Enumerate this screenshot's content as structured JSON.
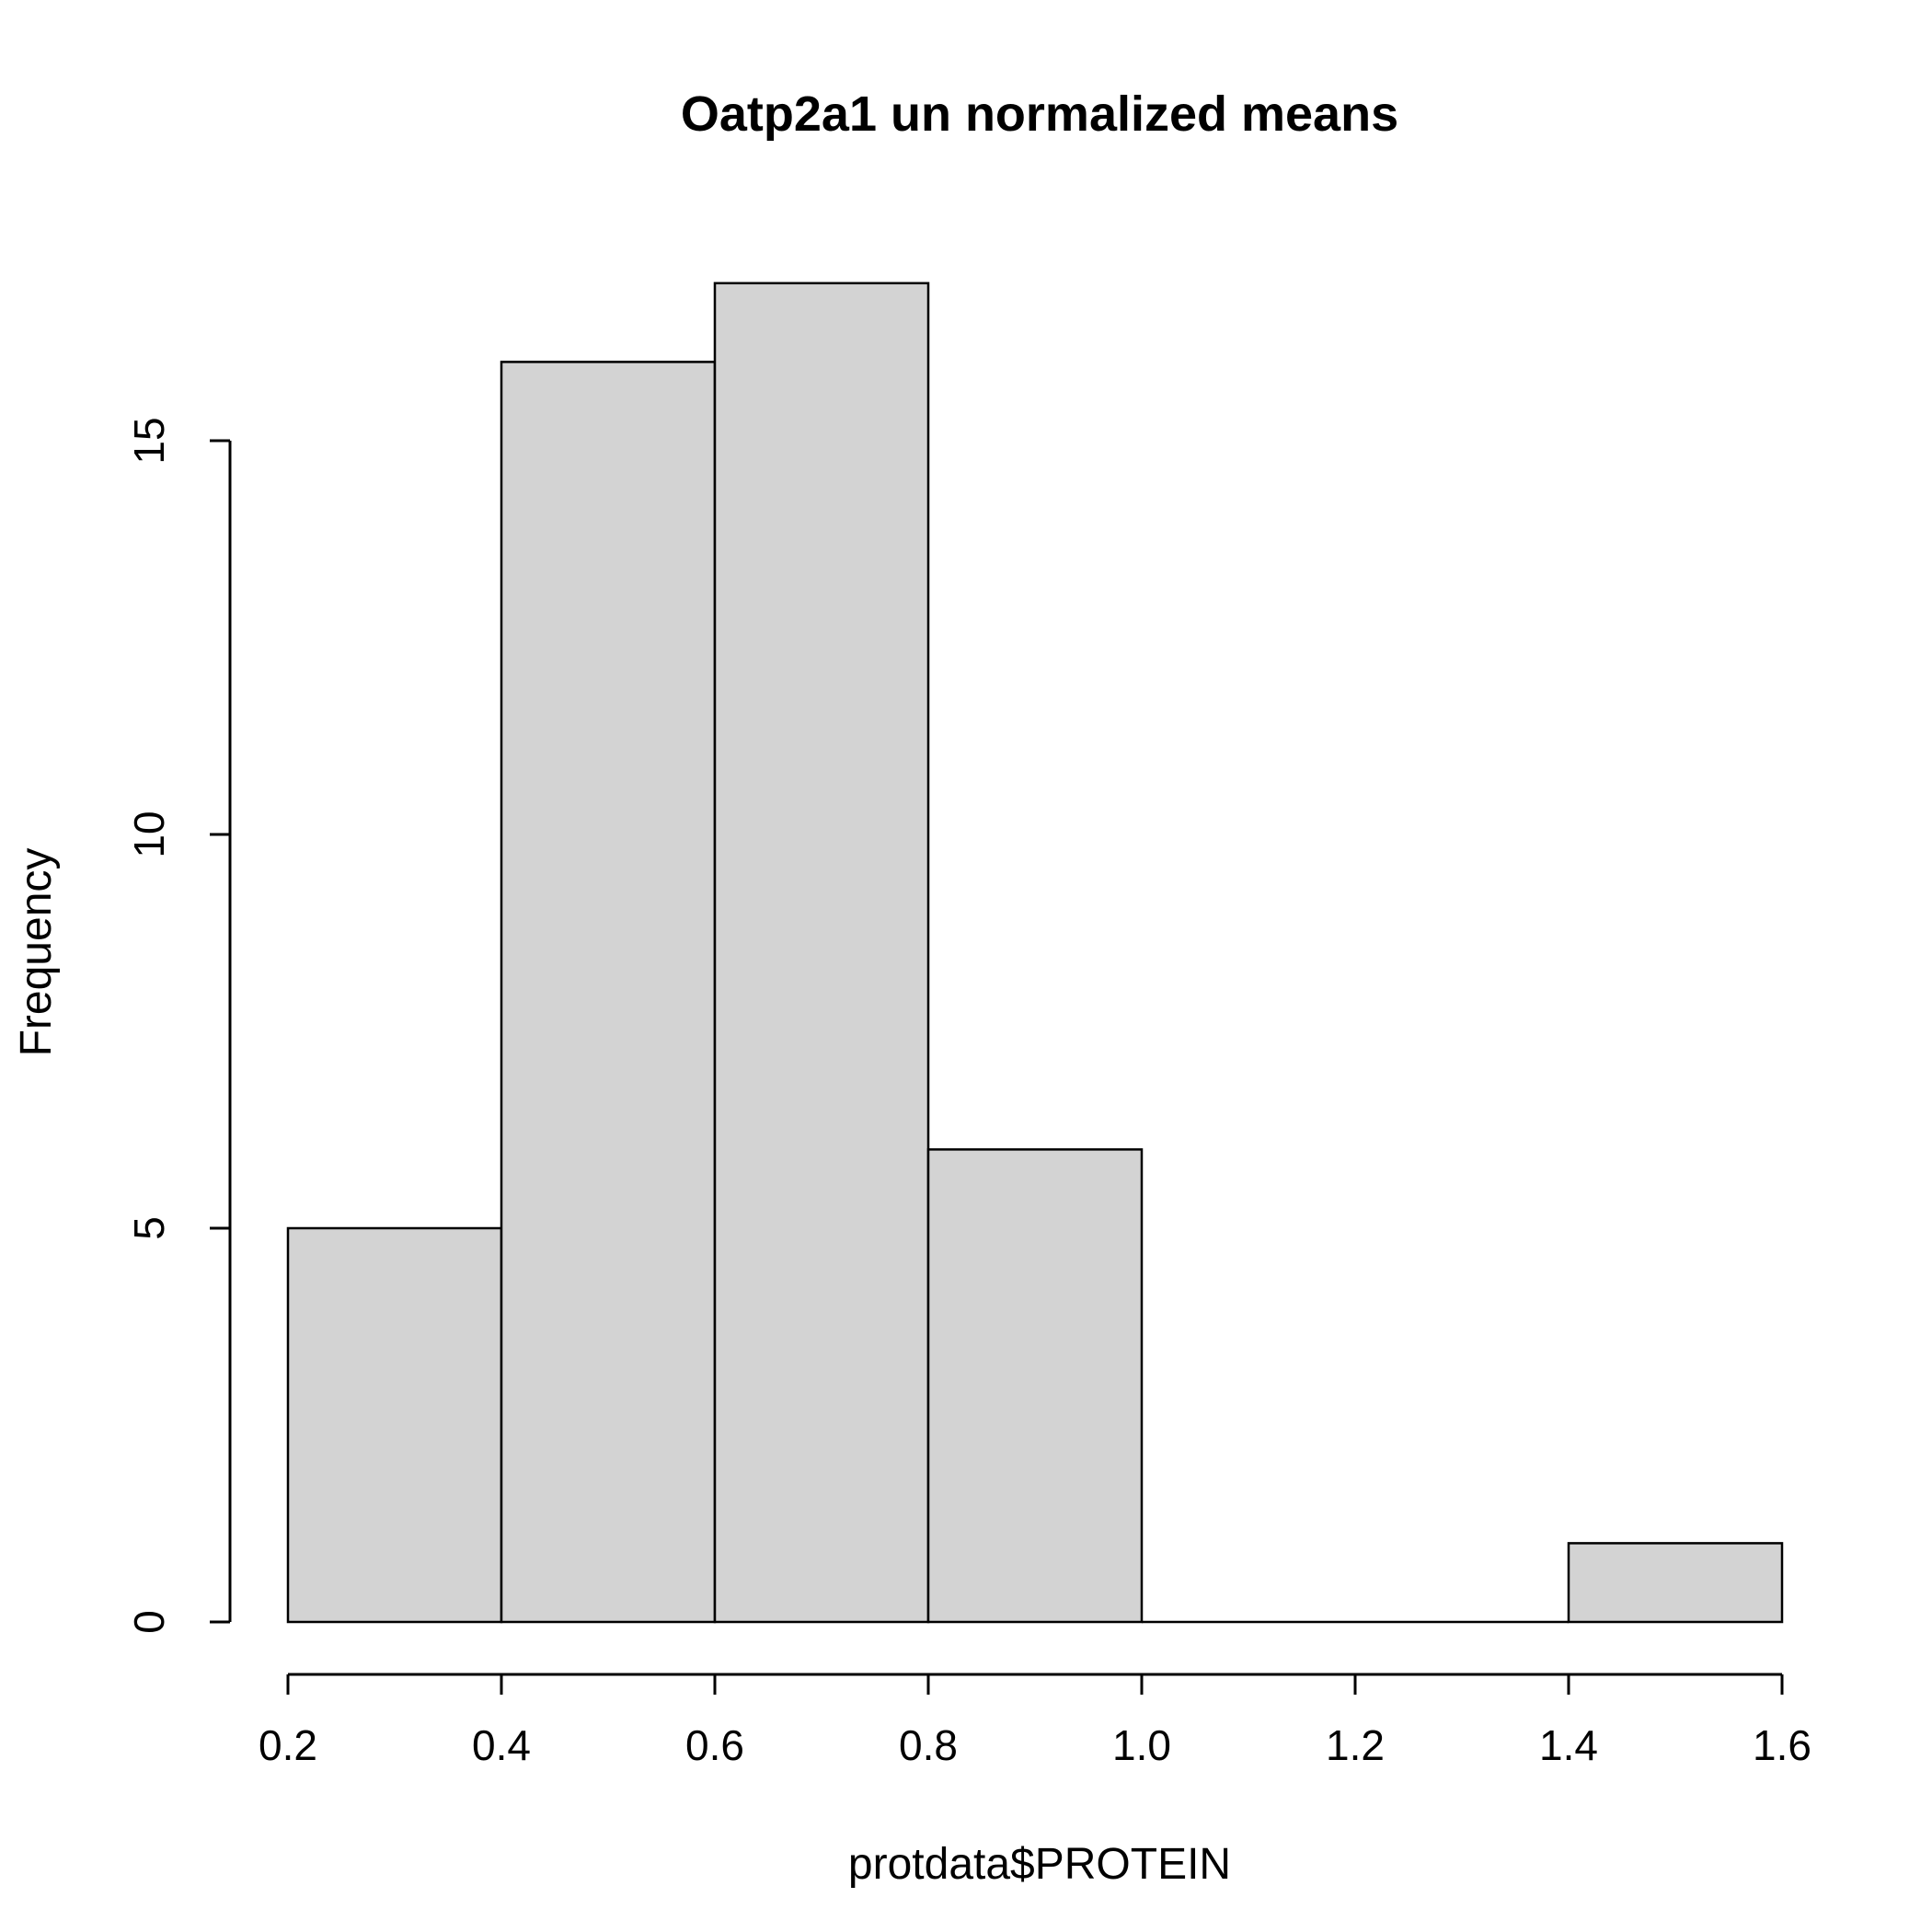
{
  "chart_data": {
    "type": "bar",
    "subtype": "histogram",
    "title": "Oatp2a1 un normalized means",
    "xlabel": "protdata$PROTEIN",
    "ylabel": "Frequency",
    "bins": [
      {
        "start": 0.2,
        "end": 0.4,
        "count": 5
      },
      {
        "start": 0.4,
        "end": 0.6,
        "count": 16
      },
      {
        "start": 0.6,
        "end": 0.8,
        "count": 17
      },
      {
        "start": 0.8,
        "end": 1.0,
        "count": 6
      },
      {
        "start": 1.0,
        "end": 1.2,
        "count": 0
      },
      {
        "start": 1.2,
        "end": 1.4,
        "count": 0
      },
      {
        "start": 1.4,
        "end": 1.6,
        "count": 1
      }
    ],
    "xlim": [
      0.2,
      1.6
    ],
    "ylim": [
      0,
      17
    ],
    "x_ticks": [
      "0.2",
      "0.4",
      "0.6",
      "0.8",
      "1.0",
      "1.2",
      "1.4",
      "1.6"
    ],
    "y_ticks": [
      "0",
      "5",
      "10",
      "15"
    ],
    "bar_color": "#d3d3d3",
    "grid": false,
    "legend": "none"
  }
}
